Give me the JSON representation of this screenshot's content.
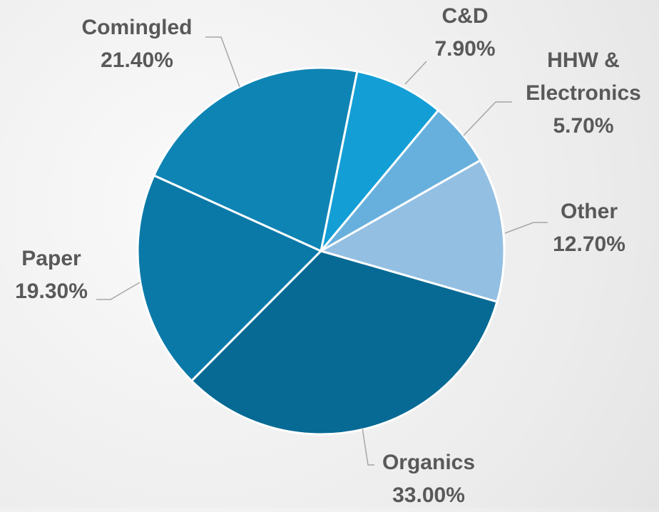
{
  "chart_data": {
    "type": "pie",
    "categories": [
      "C&D",
      "HHW & Electronics",
      "Other",
      "Organics",
      "Paper",
      "Comingled"
    ],
    "values": [
      7.9,
      5.7,
      12.7,
      33.0,
      19.3,
      21.4
    ],
    "value_labels": [
      "7.90%",
      "5.70%",
      "12.70%",
      "33.00%",
      "19.30%",
      "21.40%"
    ],
    "colors": [
      "#139fd6",
      "#67b0dd",
      "#93bfe2",
      "#076a94",
      "#0b79a8",
      "#0e84b4"
    ]
  }
}
